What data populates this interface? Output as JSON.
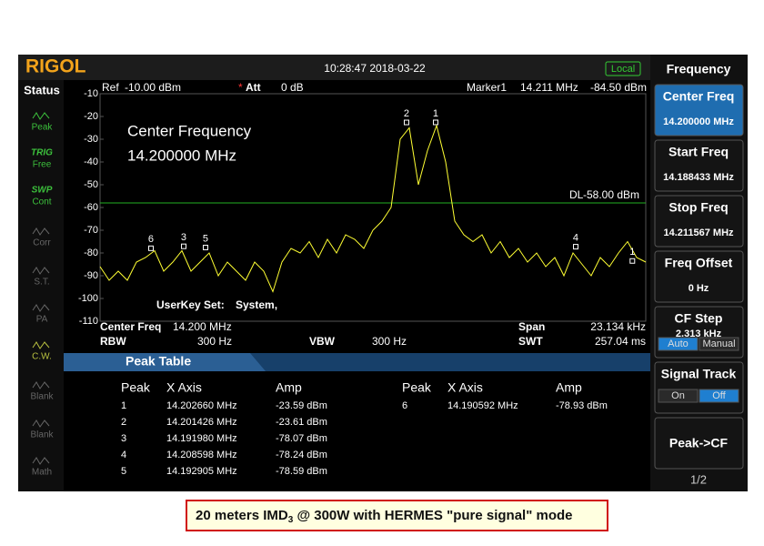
{
  "header": {
    "brand": "RIGOL",
    "datetime": "10:28:47 2018-03-22",
    "mode": "Local"
  },
  "status": {
    "title": "Status",
    "items": [
      {
        "label": "Peak"
      },
      {
        "tag": "TRIG",
        "label": "Free"
      },
      {
        "tag": "SWP",
        "label": "Cont"
      },
      {
        "label": "Corr"
      },
      {
        "label": "S.T."
      },
      {
        "label": "PA"
      },
      {
        "label": "C.W."
      },
      {
        "label": "Blank"
      },
      {
        "label": "Blank"
      },
      {
        "label": "Math"
      }
    ]
  },
  "plot": {
    "ref": "Ref",
    "ref_value": "-10.00 dBm",
    "att_flag": "*",
    "att": "Att",
    "att_value": "0 dB",
    "marker": "Marker1",
    "marker_freq": "14.211 MHz",
    "marker_amp": "-84.50 dBm",
    "overlay": [
      "Center Frequency",
      "14.200000 MHz"
    ],
    "userkey": "UserKey Set:",
    "userkey_value": "System,",
    "dl_label": "DL",
    "dl_text": "-58.00 dBm",
    "dl_level": -58,
    "type": "line",
    "color": "#ffff33",
    "ylim": [
      -110,
      -10
    ],
    "yticks": [
      -10,
      -20,
      -30,
      -40,
      -50,
      -60,
      -70,
      -80,
      -90,
      -100,
      -110
    ],
    "xlim": [
      14.188433,
      14.211567
    ],
    "values": [
      -86,
      -92,
      -88,
      -92,
      -84,
      -82,
      -79,
      -88,
      -84,
      -79,
      -88,
      -84,
      -80,
      -90,
      -84,
      -88,
      -92,
      -84,
      -88,
      -97,
      -84,
      -78,
      -80,
      -75,
      -82,
      -74,
      -80,
      -72,
      -74,
      -78,
      -70,
      -66,
      -60,
      -30,
      -25,
      -50,
      -35,
      -24,
      -40,
      -66,
      -72,
      -75,
      -72,
      -80,
      -75,
      -82,
      -78,
      -84,
      -80,
      -86,
      -82,
      -90,
      -80,
      -85,
      -90,
      -82,
      -86,
      -80,
      -75,
      -82,
      -84
    ],
    "markers": [
      {
        "label": "1",
        "x": 14.20266,
        "y": -23.59
      },
      {
        "label": "2",
        "x": 14.201426,
        "y": -23.61
      },
      {
        "label": "3",
        "x": 14.19198,
        "y": -78.07
      },
      {
        "label": "4",
        "x": 14.208598,
        "y": -78.24
      },
      {
        "label": "5",
        "x": 14.192905,
        "y": -78.59
      },
      {
        "label": "6",
        "x": 14.190592,
        "y": -78.93
      },
      {
        "label": "1",
        "x": 14.211,
        "y": -84.5
      }
    ]
  },
  "footer": {
    "center_freq_label": "Center Freq",
    "center_freq": "14.200 MHz",
    "span_label": "Span",
    "span": "23.134 kHz",
    "rbw_label": "RBW",
    "rbw": "300 Hz",
    "vbw_label": "VBW",
    "vbw": "300 Hz",
    "swt_label": "SWT",
    "swt": "257.04 ms"
  },
  "peak_table": {
    "title": "Peak Table",
    "columns": [
      "Peak",
      "X Axis",
      "Amp"
    ],
    "rows": [
      [
        "1",
        "14.202660 MHz",
        "-23.59 dBm"
      ],
      [
        "2",
        "14.201426 MHz",
        "-23.61 dBm"
      ],
      [
        "3",
        "14.191980 MHz",
        "-78.07 dBm"
      ],
      [
        "4",
        "14.208598 MHz",
        "-78.24 dBm"
      ],
      [
        "5",
        "14.192905 MHz",
        "-78.59 dBm"
      ],
      [
        "6",
        "14.190592 MHz",
        "-78.93 dBm"
      ]
    ]
  },
  "menu": {
    "title": "Frequency",
    "keys": [
      {
        "label": "Center Freq",
        "value": "14.200000 MHz"
      },
      {
        "label": "Start Freq",
        "value": "14.188433 MHz"
      },
      {
        "label": "Stop Freq",
        "value": "14.211567 MHz"
      },
      {
        "label": "Freq Offset",
        "value": "0 Hz"
      },
      {
        "label": "CF Step",
        "value": "2.313 kHz",
        "options": [
          "Auto",
          "Manual"
        ]
      },
      {
        "label": "Signal Track",
        "options": [
          "On",
          "Off"
        ]
      },
      {
        "label": "Peak->CF"
      }
    ],
    "page": "1/2"
  },
  "caption": [
    "20 meters IMD",
    "3",
    " @ 300W with HERMES \"pure signal\" mode"
  ]
}
